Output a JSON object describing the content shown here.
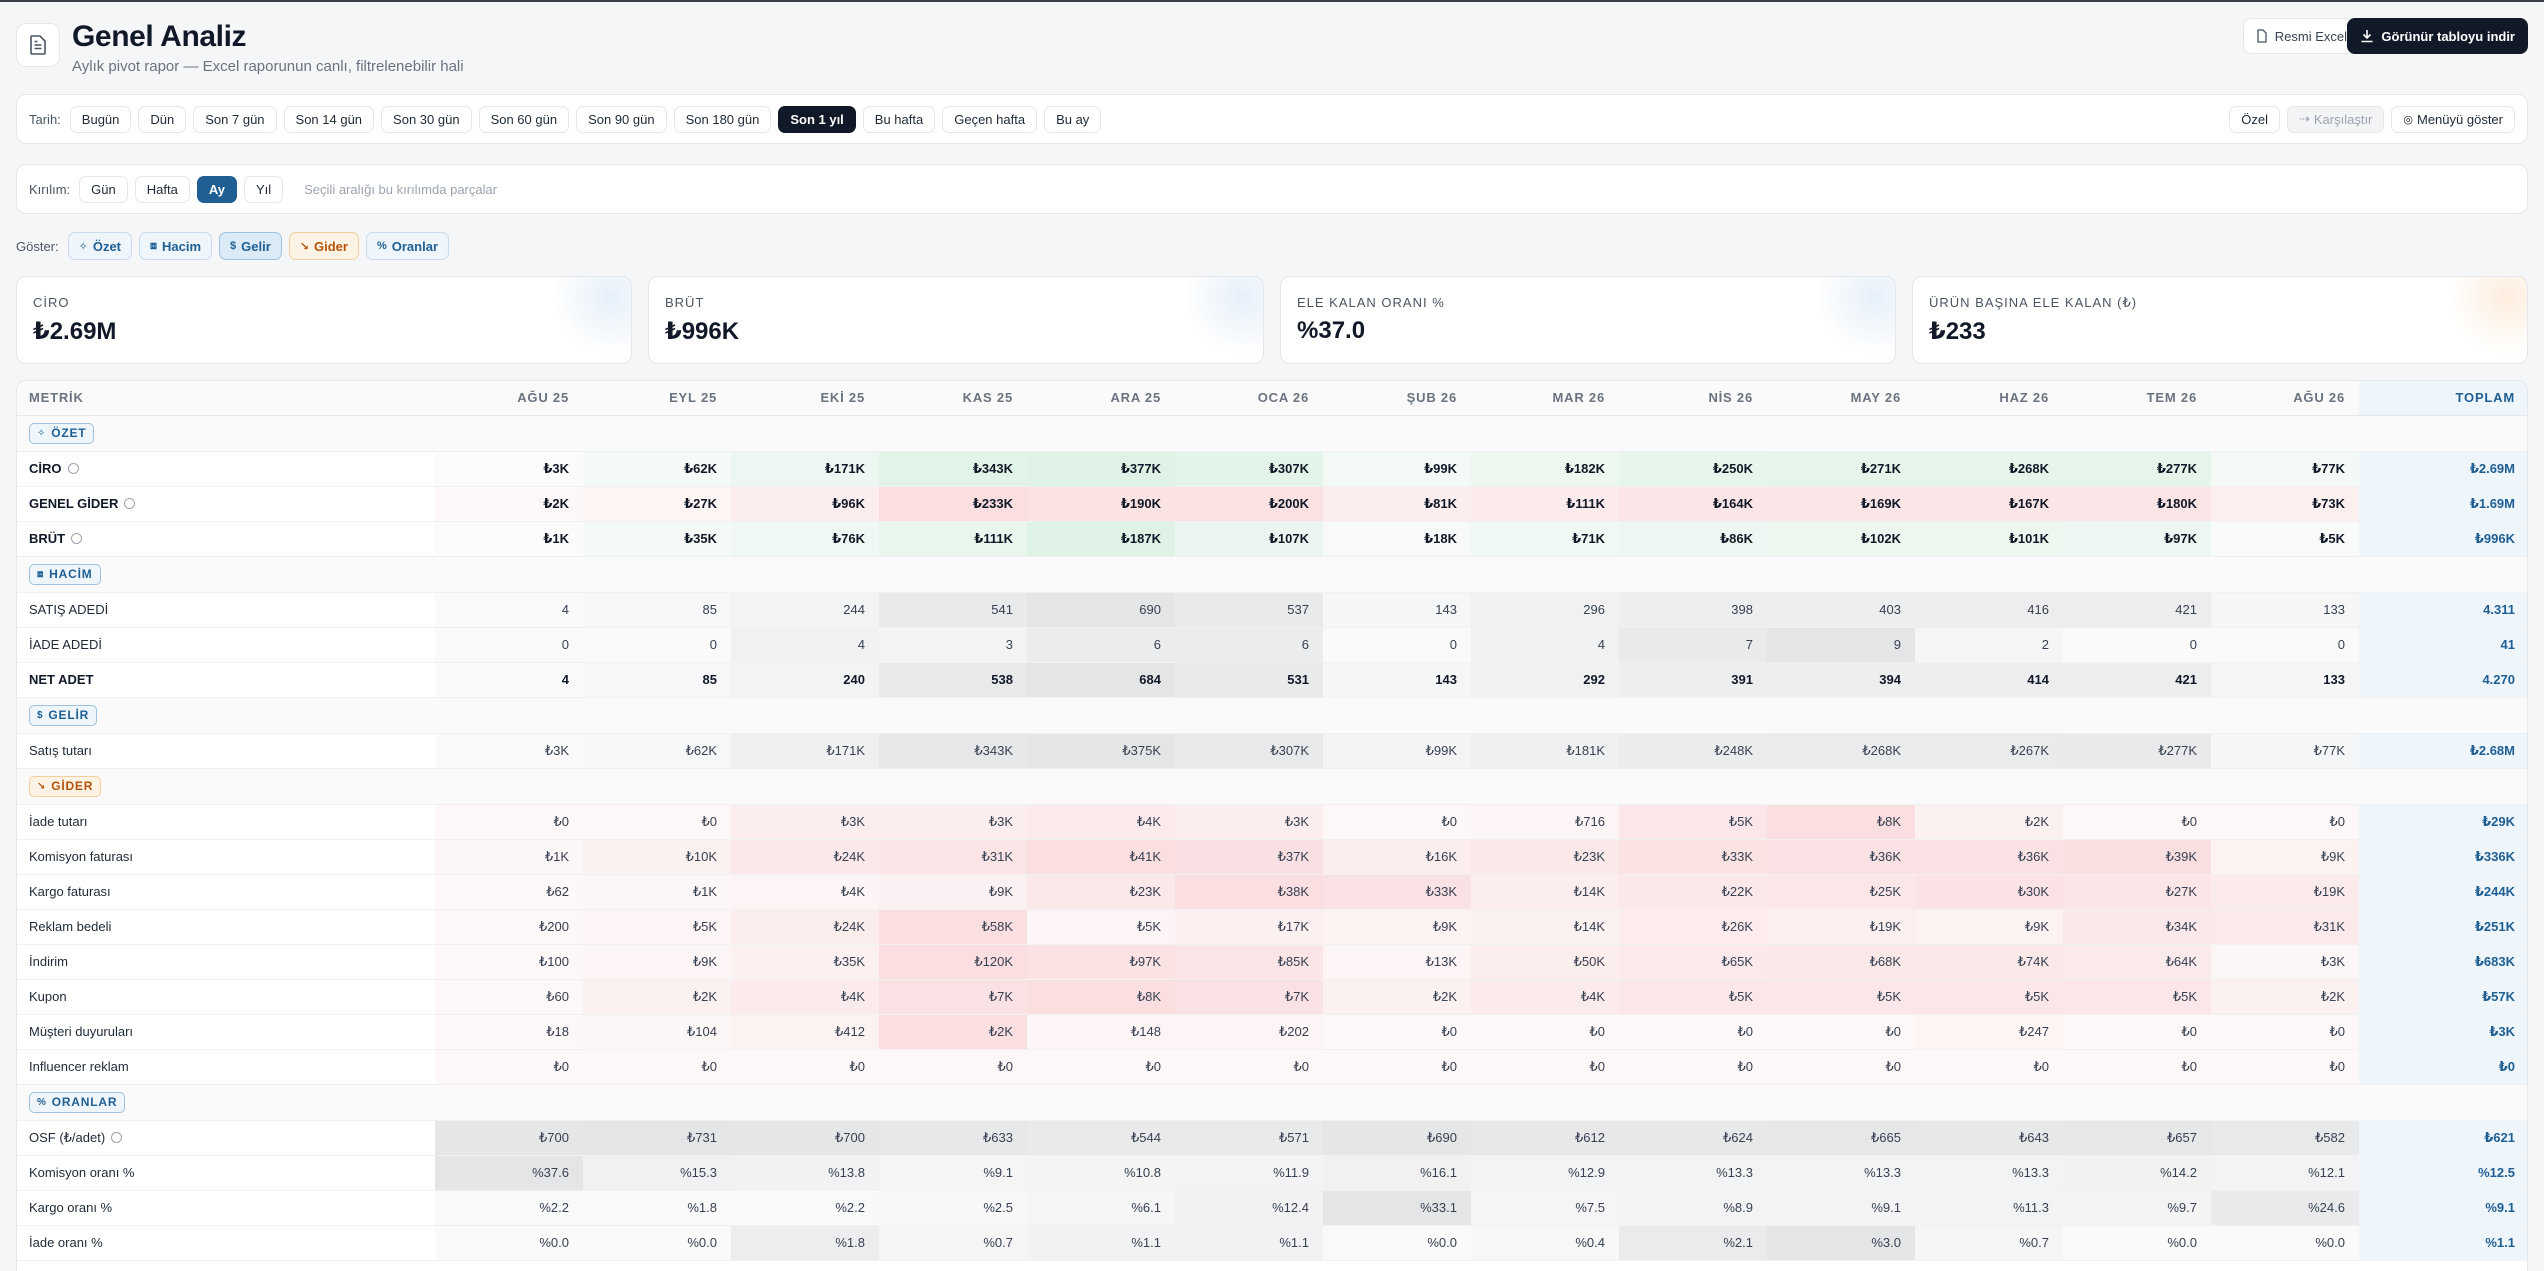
{
  "header": {
    "title": "Genel Analiz",
    "subtitle": "Aylık pivot rapor — Excel raporunun canlı, filtrelenebilir hali",
    "excel_label": "Resmi Excel",
    "download_label": "Görünür tabloyu indir"
  },
  "filter": {
    "label": "Tarih:",
    "options": [
      "Bugün",
      "Dün",
      "Son 7 gün",
      "Son 14 gün",
      "Son 30 gün",
      "Son 60 gün",
      "Son 90 gün",
      "Son 180 gün",
      "Son 1 yıl",
      "Bu hafta",
      "Geçen hafta",
      "Bu ay"
    ],
    "active": "Son 1 yıl",
    "custom_label": "Özel",
    "compare_label": "Karşılaştır",
    "menu_label": "Menüyü göster"
  },
  "breakdown": {
    "label": "Kırılım:",
    "options": [
      "Gün",
      "Hafta",
      "Ay",
      "Yıl"
    ],
    "active": "Ay",
    "hint": "Seçili aralığı bu kırılımda parçalar"
  },
  "show": {
    "label": "Göster:",
    "tags": [
      {
        "key": "ozet",
        "label": "Özet",
        "icon": "spark-icon"
      },
      {
        "key": "hacim",
        "label": "Hacim",
        "icon": "cube-icon"
      },
      {
        "key": "gelir",
        "label": "Gelir",
        "icon": "dollar-icon"
      },
      {
        "key": "gider",
        "label": "Gider",
        "icon": "trend-down-icon"
      },
      {
        "key": "oran",
        "label": "Oranlar",
        "icon": "percent-icon"
      }
    ]
  },
  "kpis": [
    {
      "label": "CİRO",
      "value": "₺2.69M"
    },
    {
      "label": "BRÜT",
      "value": "₺996K"
    },
    {
      "label": "ELE KALAN ORANI %",
      "value": "%37.0"
    },
    {
      "label": "ÜRÜN BAŞINA ELE KALAN (₺)",
      "value": "₺233"
    }
  ],
  "table": {
    "metric_header": "METRİK",
    "months": [
      "AĞU 25",
      "EYL 25",
      "EKİ 25",
      "KAS 25",
      "ARA 25",
      "OCA 26",
      "ŞUB 26",
      "MAR 26",
      "NİS 26",
      "MAY 26",
      "HAZ 26",
      "TEM 26",
      "AĞU 26"
    ],
    "total_header": "TOPLAM",
    "sections": [
      {
        "label": "ÖZET",
        "icon": "spark-icon",
        "color": "blue",
        "rows": [
          {
            "name": "CİRO",
            "info": true,
            "bold": true,
            "tone": "green",
            "values": [
              "₺3K",
              "₺62K",
              "₺171K",
              "₺343K",
              "₺377K",
              "₺307K",
              "₺99K",
              "₺182K",
              "₺250K",
              "₺271K",
              "₺268K",
              "₺277K",
              "₺77K"
            ],
            "total": "₺2.69M"
          },
          {
            "name": "GENEL GİDER",
            "info": true,
            "bold": true,
            "tone": "red",
            "values": [
              "₺2K",
              "₺27K",
              "₺96K",
              "₺233K",
              "₺190K",
              "₺200K",
              "₺81K",
              "₺111K",
              "₺164K",
              "₺169K",
              "₺167K",
              "₺180K",
              "₺73K"
            ],
            "total": "₺1.69M"
          },
          {
            "name": "BRÜT",
            "info": true,
            "bold": true,
            "tone": "green",
            "values": [
              "₺1K",
              "₺35K",
              "₺76K",
              "₺111K",
              "₺187K",
              "₺107K",
              "₺18K",
              "₺71K",
              "₺86K",
              "₺102K",
              "₺101K",
              "₺97K",
              "₺5K"
            ],
            "total": "₺996K"
          }
        ]
      },
      {
        "label": "HACİM",
        "icon": "cube-icon",
        "color": "blue",
        "rows": [
          {
            "name": "SATIŞ ADEDİ",
            "bold": false,
            "tone": "gray",
            "values": [
              "4",
              "85",
              "244",
              "541",
              "690",
              "537",
              "143",
              "296",
              "398",
              "403",
              "416",
              "421",
              "133"
            ],
            "total": "4.311"
          },
          {
            "name": "İADE ADEDİ",
            "bold": false,
            "tone": "gray",
            "values": [
              "0",
              "0",
              "4",
              "3",
              "6",
              "6",
              "0",
              "4",
              "7",
              "9",
              "2",
              "0",
              "0"
            ],
            "total": "41"
          },
          {
            "name": "NET ADET",
            "bold": true,
            "tone": "gray",
            "values": [
              "4",
              "85",
              "240",
              "538",
              "684",
              "531",
              "143",
              "292",
              "391",
              "394",
              "414",
              "421",
              "133"
            ],
            "total": "4.270"
          }
        ]
      },
      {
        "label": "GELİR",
        "icon": "dollar-icon",
        "color": "blue",
        "rows": [
          {
            "name": "Satış tutarı",
            "bold": false,
            "tone": "gray",
            "values": [
              "₺3K",
              "₺62K",
              "₺171K",
              "₺343K",
              "₺375K",
              "₺307K",
              "₺99K",
              "₺181K",
              "₺248K",
              "₺268K",
              "₺267K",
              "₺277K",
              "₺77K"
            ],
            "total": "₺2.68M"
          }
        ]
      },
      {
        "label": "GİDER",
        "icon": "trend-down-icon",
        "color": "orange",
        "rows": [
          {
            "name": "İade tutarı",
            "bold": false,
            "tone": "red",
            "values": [
              "₺0",
              "₺0",
              "₺3K",
              "₺3K",
              "₺4K",
              "₺3K",
              "₺0",
              "₺716",
              "₺5K",
              "₺8K",
              "₺2K",
              "₺0",
              "₺0"
            ],
            "total": "₺29K"
          },
          {
            "name": "Komisyon faturası",
            "bold": false,
            "tone": "red",
            "values": [
              "₺1K",
              "₺10K",
              "₺24K",
              "₺31K",
              "₺41K",
              "₺37K",
              "₺16K",
              "₺23K",
              "₺33K",
              "₺36K",
              "₺36K",
              "₺39K",
              "₺9K"
            ],
            "total": "₺336K"
          },
          {
            "name": "Kargo faturası",
            "bold": false,
            "tone": "red",
            "values": [
              "₺62",
              "₺1K",
              "₺4K",
              "₺9K",
              "₺23K",
              "₺38K",
              "₺33K",
              "₺14K",
              "₺22K",
              "₺25K",
              "₺30K",
              "₺27K",
              "₺19K"
            ],
            "total": "₺244K"
          },
          {
            "name": "Reklam bedeli",
            "bold": false,
            "tone": "red",
            "values": [
              "₺200",
              "₺5K",
              "₺24K",
              "₺58K",
              "₺5K",
              "₺17K",
              "₺9K",
              "₺14K",
              "₺26K",
              "₺19K",
              "₺9K",
              "₺34K",
              "₺31K"
            ],
            "total": "₺251K"
          },
          {
            "name": "İndirim",
            "bold": false,
            "tone": "red",
            "values": [
              "₺100",
              "₺9K",
              "₺35K",
              "₺120K",
              "₺97K",
              "₺85K",
              "₺13K",
              "₺50K",
              "₺65K",
              "₺68K",
              "₺74K",
              "₺64K",
              "₺3K"
            ],
            "total": "₺683K"
          },
          {
            "name": "Kupon",
            "bold": false,
            "tone": "red",
            "values": [
              "₺60",
              "₺2K",
              "₺4K",
              "₺7K",
              "₺8K",
              "₺7K",
              "₺2K",
              "₺4K",
              "₺5K",
              "₺5K",
              "₺5K",
              "₺5K",
              "₺2K"
            ],
            "total": "₺57K"
          },
          {
            "name": "Müşteri duyuruları",
            "bold": false,
            "tone": "red",
            "values": [
              "₺18",
              "₺104",
              "₺412",
              "₺2K",
              "₺148",
              "₺202",
              "₺0",
              "₺0",
              "₺0",
              "₺0",
              "₺247",
              "₺0",
              "₺0"
            ],
            "total": "₺3K"
          },
          {
            "name": "Influencer reklam",
            "bold": false,
            "tone": "red",
            "values": [
              "₺0",
              "₺0",
              "₺0",
              "₺0",
              "₺0",
              "₺0",
              "₺0",
              "₺0",
              "₺0",
              "₺0",
              "₺0",
              "₺0",
              "₺0"
            ],
            "total": "₺0"
          }
        ]
      },
      {
        "label": "ORANLAR",
        "icon": "percent-icon",
        "color": "blue",
        "rows": [
          {
            "name": "OSF (₺/adet)",
            "info": true,
            "bold": false,
            "tone": "gray",
            "values": [
              "₺700",
              "₺731",
              "₺700",
              "₺633",
              "₺544",
              "₺571",
              "₺690",
              "₺612",
              "₺624",
              "₺665",
              "₺643",
              "₺657",
              "₺582"
            ],
            "total": "₺621"
          },
          {
            "name": "Komisyon oranı %",
            "bold": false,
            "tone": "gray",
            "values": [
              "%37.6",
              "%15.3",
              "%13.8",
              "%9.1",
              "%10.8",
              "%11.9",
              "%16.1",
              "%12.9",
              "%13.3",
              "%13.3",
              "%13.3",
              "%14.2",
              "%12.1"
            ],
            "total": "%12.5"
          },
          {
            "name": "Kargo oranı %",
            "bold": false,
            "tone": "gray",
            "values": [
              "%2.2",
              "%1.8",
              "%2.2",
              "%2.5",
              "%6.1",
              "%12.4",
              "%33.1",
              "%7.5",
              "%8.9",
              "%9.1",
              "%11.3",
              "%9.7",
              "%24.6"
            ],
            "total": "%9.1"
          },
          {
            "name": "İade oranı %",
            "bold": false,
            "tone": "gray",
            "values": [
              "%0.0",
              "%0.0",
              "%1.8",
              "%0.7",
              "%1.1",
              "%1.1",
              "%0.0",
              "%0.4",
              "%2.1",
              "%3.0",
              "%0.7",
              "%0.0",
              "%0.0"
            ],
            "total": "%1.1"
          }
        ]
      }
    ]
  }
}
